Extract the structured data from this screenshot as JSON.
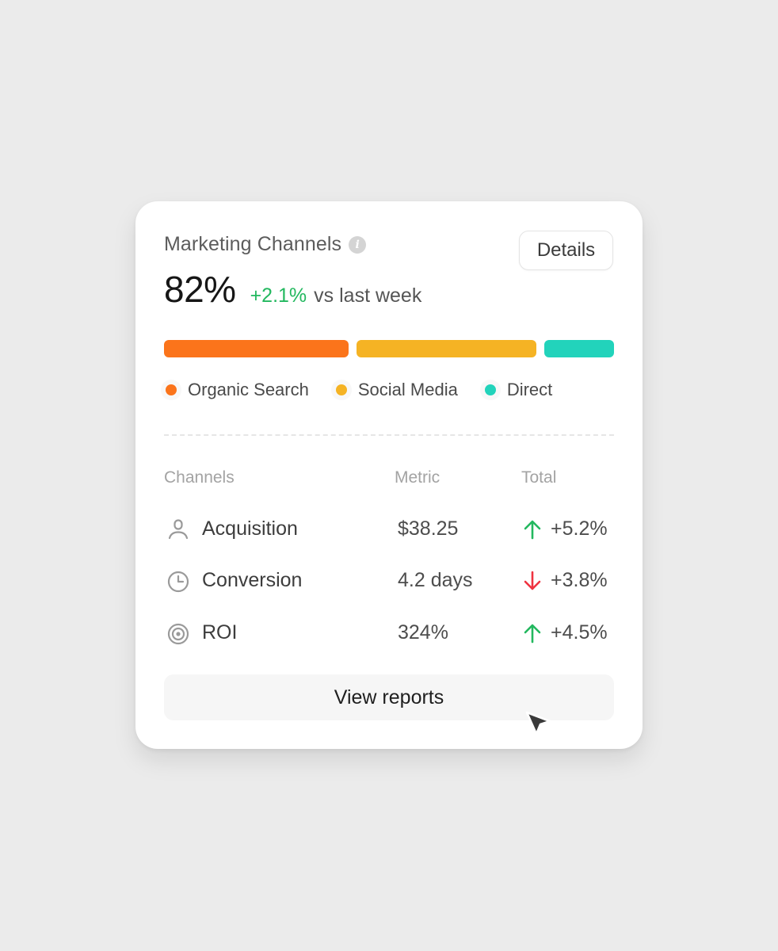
{
  "card": {
    "title": "Marketing Channels",
    "info_icon": "info-icon",
    "details_label": "Details",
    "value": "82%",
    "delta": "+2.1%",
    "delta_suffix": "vs last week",
    "delta_color": "#23b85f"
  },
  "channels": [
    {
      "label": "Organic Search",
      "color": "#fb741b",
      "share": 0.41
    },
    {
      "label": "Social Media",
      "color": "#f5b324",
      "share": 0.4
    },
    {
      "label": "Direct",
      "color": "#22d3bb",
      "share": 0.155
    }
  ],
  "table": {
    "headers": {
      "channels": "Channels",
      "metric": "Metric",
      "total": "Total"
    },
    "rows": [
      {
        "icon": "user-icon",
        "name": "Acquisition",
        "metric": "$38.25",
        "direction": "up",
        "total": "+5.2%"
      },
      {
        "icon": "clock-icon",
        "name": "Conversion",
        "metric": "4.2 days",
        "direction": "down",
        "total": "+3.8%"
      },
      {
        "icon": "target-icon",
        "name": "ROI",
        "metric": "324%",
        "direction": "up",
        "total": "+4.5%"
      }
    ],
    "up_color": "#23b85f",
    "down_color": "#ef3340"
  },
  "footer": {
    "view_reports_label": "View reports"
  }
}
